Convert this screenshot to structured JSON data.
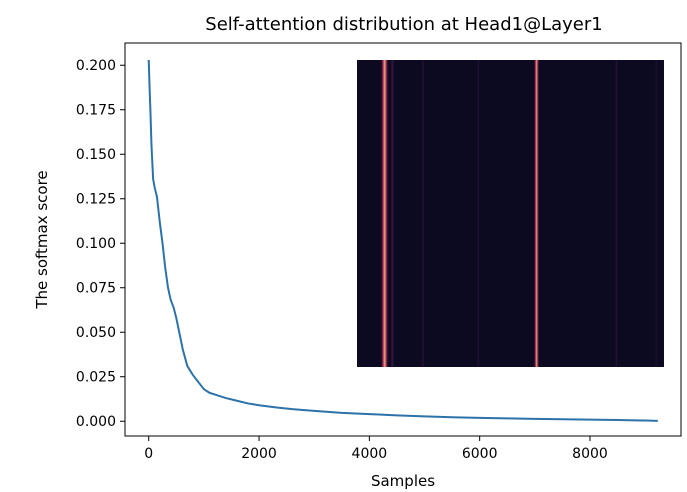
{
  "chart_data": {
    "type": "line",
    "title": "Self-attention distribution at Head1@Layer1",
    "xlabel": "Samples",
    "ylabel": "The softmax score",
    "xlim": [
      -430,
      9650
    ],
    "ylim": [
      -0.0083,
      0.2125
    ],
    "xticks": [
      0,
      2000,
      4000,
      6000,
      8000
    ],
    "xtick_labels": [
      "0",
      "2000",
      "4000",
      "6000",
      "8000"
    ],
    "yticks": [
      0.0,
      0.025,
      0.05,
      0.075,
      0.1,
      0.125,
      0.15,
      0.175,
      0.2
    ],
    "ytick_labels": [
      "0.000",
      "0.025",
      "0.050",
      "0.075",
      "0.100",
      "0.125",
      "0.150",
      "0.175",
      "0.200"
    ],
    "grid": false,
    "line_color": "#2d72a8",
    "series": [
      {
        "x": [
          0,
          15,
          30,
          50,
          80,
          110,
          150,
          200,
          250,
          300,
          350,
          400,
          450,
          500,
          560,
          620,
          700,
          800,
          900,
          1000,
          1100,
          1250,
          1400,
          1600,
          1800,
          2000,
          2300,
          2600,
          3000,
          3500,
          4000,
          4500,
          5000,
          5500,
          6000,
          6500,
          7000,
          7500,
          8000,
          8500,
          9000,
          9230
        ],
        "values": [
          0.203,
          0.188,
          0.175,
          0.155,
          0.136,
          0.131,
          0.126,
          0.112,
          0.1,
          0.086,
          0.075,
          0.068,
          0.064,
          0.058,
          0.049,
          0.04,
          0.031,
          0.026,
          0.022,
          0.018,
          0.016,
          0.0145,
          0.013,
          0.0115,
          0.01,
          0.009,
          0.0078,
          0.0068,
          0.0058,
          0.0047,
          0.004,
          0.0033,
          0.0027,
          0.0022,
          0.0019,
          0.0016,
          0.0013,
          0.0011,
          0.0009,
          0.0007,
          0.0004,
          0.0002
        ]
      }
    ],
    "inset": {
      "type": "heatmap",
      "background": "#0c0a20",
      "bands": [
        {
          "position": 0.09,
          "width": 0.025,
          "intensity": 1.0
        },
        {
          "position": 0.115,
          "width": 0.012,
          "intensity": 0.35
        },
        {
          "position": 0.215,
          "width": 0.01,
          "intensity": 0.15
        },
        {
          "position": 0.395,
          "width": 0.008,
          "intensity": 0.12
        },
        {
          "position": 0.585,
          "width": 0.018,
          "intensity": 0.95
        },
        {
          "position": 0.845,
          "width": 0.01,
          "intensity": 0.15
        },
        {
          "position": 0.975,
          "width": 0.008,
          "intensity": 0.1
        }
      ]
    }
  }
}
